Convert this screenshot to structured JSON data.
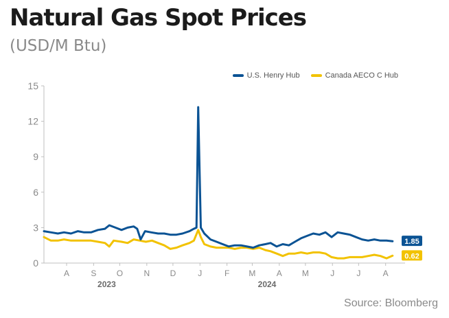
{
  "title": "Natural Gas Spot Prices",
  "subtitle": "(USD/M Btu)",
  "source": "Source: Bloomberg",
  "colors": {
    "henry": "#0b5394",
    "aeco": "#f2c200",
    "axis": "#bfbfbf",
    "tick": "#8a8a8a"
  },
  "chart_data": {
    "type": "line",
    "ylim": [
      0,
      15
    ],
    "yticks": [
      0,
      3,
      6,
      9,
      12,
      15
    ],
    "xlim": [
      "2023-07-20",
      "2024-08-31"
    ],
    "month_ticks": [
      {
        "label": "A",
        "date": "2023-08-15"
      },
      {
        "label": "S",
        "date": "2023-09-15"
      },
      {
        "label": "O",
        "date": "2023-10-15"
      },
      {
        "label": "N",
        "date": "2023-11-15"
      },
      {
        "label": "D",
        "date": "2023-12-15"
      },
      {
        "label": "J",
        "date": "2024-01-15"
      },
      {
        "label": "F",
        "date": "2024-02-15"
      },
      {
        "label": "M",
        "date": "2024-03-15"
      },
      {
        "label": "A",
        "date": "2024-04-15"
      },
      {
        "label": "M",
        "date": "2024-05-15"
      },
      {
        "label": "J",
        "date": "2024-06-15"
      },
      {
        "label": "J",
        "date": "2024-07-15"
      },
      {
        "label": "A",
        "date": "2024-08-15"
      }
    ],
    "year_labels": [
      {
        "label": "2023",
        "date": "2023-09-30"
      },
      {
        "label": "2024",
        "date": "2024-04-01"
      }
    ],
    "legend": "top-right",
    "series": [
      {
        "name": "U.S. Henry Hub",
        "color": "#0b5394",
        "last_label": "1.85",
        "points": [
          [
            "2023-07-20",
            2.7
          ],
          [
            "2023-07-28",
            2.6
          ],
          [
            "2023-08-05",
            2.5
          ],
          [
            "2023-08-12",
            2.6
          ],
          [
            "2023-08-20",
            2.5
          ],
          [
            "2023-08-28",
            2.7
          ],
          [
            "2023-09-04",
            2.6
          ],
          [
            "2023-09-12",
            2.6
          ],
          [
            "2023-09-20",
            2.8
          ],
          [
            "2023-09-28",
            2.9
          ],
          [
            "2023-10-03",
            3.2
          ],
          [
            "2023-10-10",
            3.0
          ],
          [
            "2023-10-17",
            2.8
          ],
          [
            "2023-10-24",
            3.0
          ],
          [
            "2023-10-31",
            3.1
          ],
          [
            "2023-11-04",
            2.9
          ],
          [
            "2023-11-08",
            2.0
          ],
          [
            "2023-11-13",
            2.7
          ],
          [
            "2023-11-20",
            2.6
          ],
          [
            "2023-11-28",
            2.5
          ],
          [
            "2023-12-05",
            2.5
          ],
          [
            "2023-12-12",
            2.4
          ],
          [
            "2023-12-19",
            2.4
          ],
          [
            "2023-12-26",
            2.5
          ],
          [
            "2024-01-03",
            2.7
          ],
          [
            "2024-01-08",
            2.9
          ],
          [
            "2024-01-11",
            3.0
          ],
          [
            "2024-01-13",
            13.2
          ],
          [
            "2024-01-16",
            3.0
          ],
          [
            "2024-01-20",
            2.5
          ],
          [
            "2024-01-27",
            2.0
          ],
          [
            "2024-02-03",
            1.8
          ],
          [
            "2024-02-10",
            1.6
          ],
          [
            "2024-02-17",
            1.4
          ],
          [
            "2024-02-24",
            1.5
          ],
          [
            "2024-03-02",
            1.5
          ],
          [
            "2024-03-09",
            1.4
          ],
          [
            "2024-03-16",
            1.3
          ],
          [
            "2024-03-23",
            1.5
          ],
          [
            "2024-03-30",
            1.6
          ],
          [
            "2024-04-05",
            1.7
          ],
          [
            "2024-04-12",
            1.4
          ],
          [
            "2024-04-19",
            1.6
          ],
          [
            "2024-04-26",
            1.5
          ],
          [
            "2024-05-03",
            1.8
          ],
          [
            "2024-05-10",
            2.1
          ],
          [
            "2024-05-17",
            2.3
          ],
          [
            "2024-05-24",
            2.5
          ],
          [
            "2024-05-31",
            2.4
          ],
          [
            "2024-06-07",
            2.6
          ],
          [
            "2024-06-14",
            2.2
          ],
          [
            "2024-06-21",
            2.6
          ],
          [
            "2024-06-28",
            2.5
          ],
          [
            "2024-07-05",
            2.4
          ],
          [
            "2024-07-12",
            2.2
          ],
          [
            "2024-07-19",
            2.0
          ],
          [
            "2024-07-26",
            1.9
          ],
          [
            "2024-08-02",
            2.0
          ],
          [
            "2024-08-09",
            1.9
          ],
          [
            "2024-08-16",
            1.9
          ],
          [
            "2024-08-23",
            1.85
          ]
        ]
      },
      {
        "name": "Canada AECO C Hub",
        "color": "#f2c200",
        "last_label": "0.62",
        "points": [
          [
            "2023-07-20",
            2.2
          ],
          [
            "2023-07-28",
            1.9
          ],
          [
            "2023-08-05",
            1.9
          ],
          [
            "2023-08-12",
            2.0
          ],
          [
            "2023-08-20",
            1.9
          ],
          [
            "2023-08-28",
            1.9
          ],
          [
            "2023-09-04",
            1.9
          ],
          [
            "2023-09-12",
            1.9
          ],
          [
            "2023-09-20",
            1.8
          ],
          [
            "2023-09-28",
            1.7
          ],
          [
            "2023-10-03",
            1.4
          ],
          [
            "2023-10-08",
            1.9
          ],
          [
            "2023-10-17",
            1.8
          ],
          [
            "2023-10-24",
            1.7
          ],
          [
            "2023-10-31",
            2.0
          ],
          [
            "2023-11-07",
            1.9
          ],
          [
            "2023-11-14",
            1.8
          ],
          [
            "2023-11-21",
            1.9
          ],
          [
            "2023-11-28",
            1.7
          ],
          [
            "2023-12-05",
            1.5
          ],
          [
            "2023-12-12",
            1.2
          ],
          [
            "2023-12-19",
            1.3
          ],
          [
            "2023-12-26",
            1.5
          ],
          [
            "2024-01-03",
            1.7
          ],
          [
            "2024-01-08",
            1.9
          ],
          [
            "2024-01-13",
            2.8
          ],
          [
            "2024-01-16",
            2.2
          ],
          [
            "2024-01-20",
            1.6
          ],
          [
            "2024-01-27",
            1.4
          ],
          [
            "2024-02-03",
            1.3
          ],
          [
            "2024-02-10",
            1.3
          ],
          [
            "2024-02-17",
            1.3
          ],
          [
            "2024-02-24",
            1.2
          ],
          [
            "2024-03-02",
            1.3
          ],
          [
            "2024-03-09",
            1.3
          ],
          [
            "2024-03-16",
            1.2
          ],
          [
            "2024-03-23",
            1.3
          ],
          [
            "2024-03-30",
            1.1
          ],
          [
            "2024-04-05",
            1.0
          ],
          [
            "2024-04-12",
            0.8
          ],
          [
            "2024-04-19",
            0.6
          ],
          [
            "2024-04-26",
            0.8
          ],
          [
            "2024-05-03",
            0.8
          ],
          [
            "2024-05-10",
            0.9
          ],
          [
            "2024-05-17",
            0.8
          ],
          [
            "2024-05-24",
            0.9
          ],
          [
            "2024-05-31",
            0.9
          ],
          [
            "2024-06-07",
            0.8
          ],
          [
            "2024-06-14",
            0.5
          ],
          [
            "2024-06-21",
            0.4
          ],
          [
            "2024-06-28",
            0.4
          ],
          [
            "2024-07-05",
            0.5
          ],
          [
            "2024-07-12",
            0.5
          ],
          [
            "2024-07-19",
            0.5
          ],
          [
            "2024-07-26",
            0.6
          ],
          [
            "2024-08-02",
            0.7
          ],
          [
            "2024-08-09",
            0.6
          ],
          [
            "2024-08-16",
            0.4
          ],
          [
            "2024-08-23",
            0.62
          ]
        ]
      }
    ]
  }
}
